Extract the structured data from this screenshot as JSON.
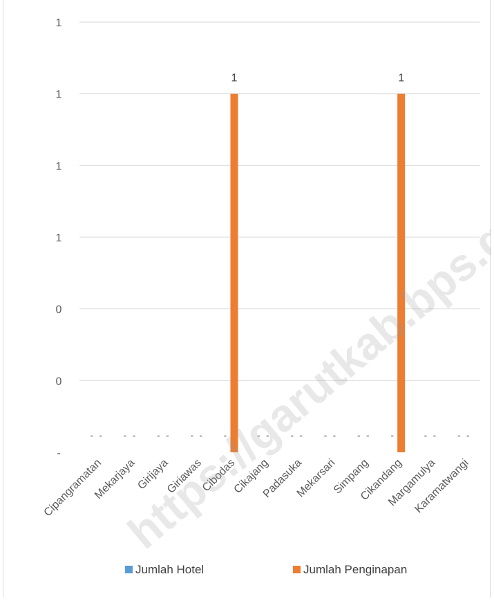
{
  "chart_data": {
    "type": "bar",
    "categories": [
      "Cipangramatan",
      "Mekarjaya",
      "Girijaya",
      "Giriawas",
      "Cibodas",
      "Cikajang",
      "Padasuka",
      "Mekarsari",
      "Simpang",
      "Cikandang",
      "Margamulya",
      "Karamatwangi"
    ],
    "series": [
      {
        "name": "Jumlah Hotel",
        "color": "#5b9bd5",
        "values": [
          0,
          0,
          0,
          0,
          0,
          0,
          0,
          0,
          0,
          0,
          0,
          0
        ],
        "labels": [
          "-",
          "-",
          "-",
          "-",
          "-",
          "-",
          "-",
          "-",
          "-",
          "-",
          "-",
          "-"
        ]
      },
      {
        "name": "Jumlah Penginapan",
        "color": "#ed7d31",
        "values": [
          0,
          0,
          0,
          0,
          1,
          0,
          0,
          0,
          0,
          1,
          0,
          0
        ],
        "labels": [
          "-",
          "-",
          "-",
          "-",
          "1",
          "-",
          "-",
          "-",
          "-",
          "1",
          "-",
          "-"
        ]
      }
    ],
    "y_ticks": [
      "-",
      "0",
      "0",
      "1",
      "1",
      "1",
      "1"
    ],
    "y_tick_values": [
      0,
      0.2,
      0.4,
      0.6,
      0.8,
      1.0,
      1.2
    ],
    "ylim": [
      0,
      1.2
    ],
    "grid": true,
    "legend_position": "bottom",
    "gridline_color": "#d9d9d9"
  },
  "watermark": "https://garutkab.bps.go.id"
}
